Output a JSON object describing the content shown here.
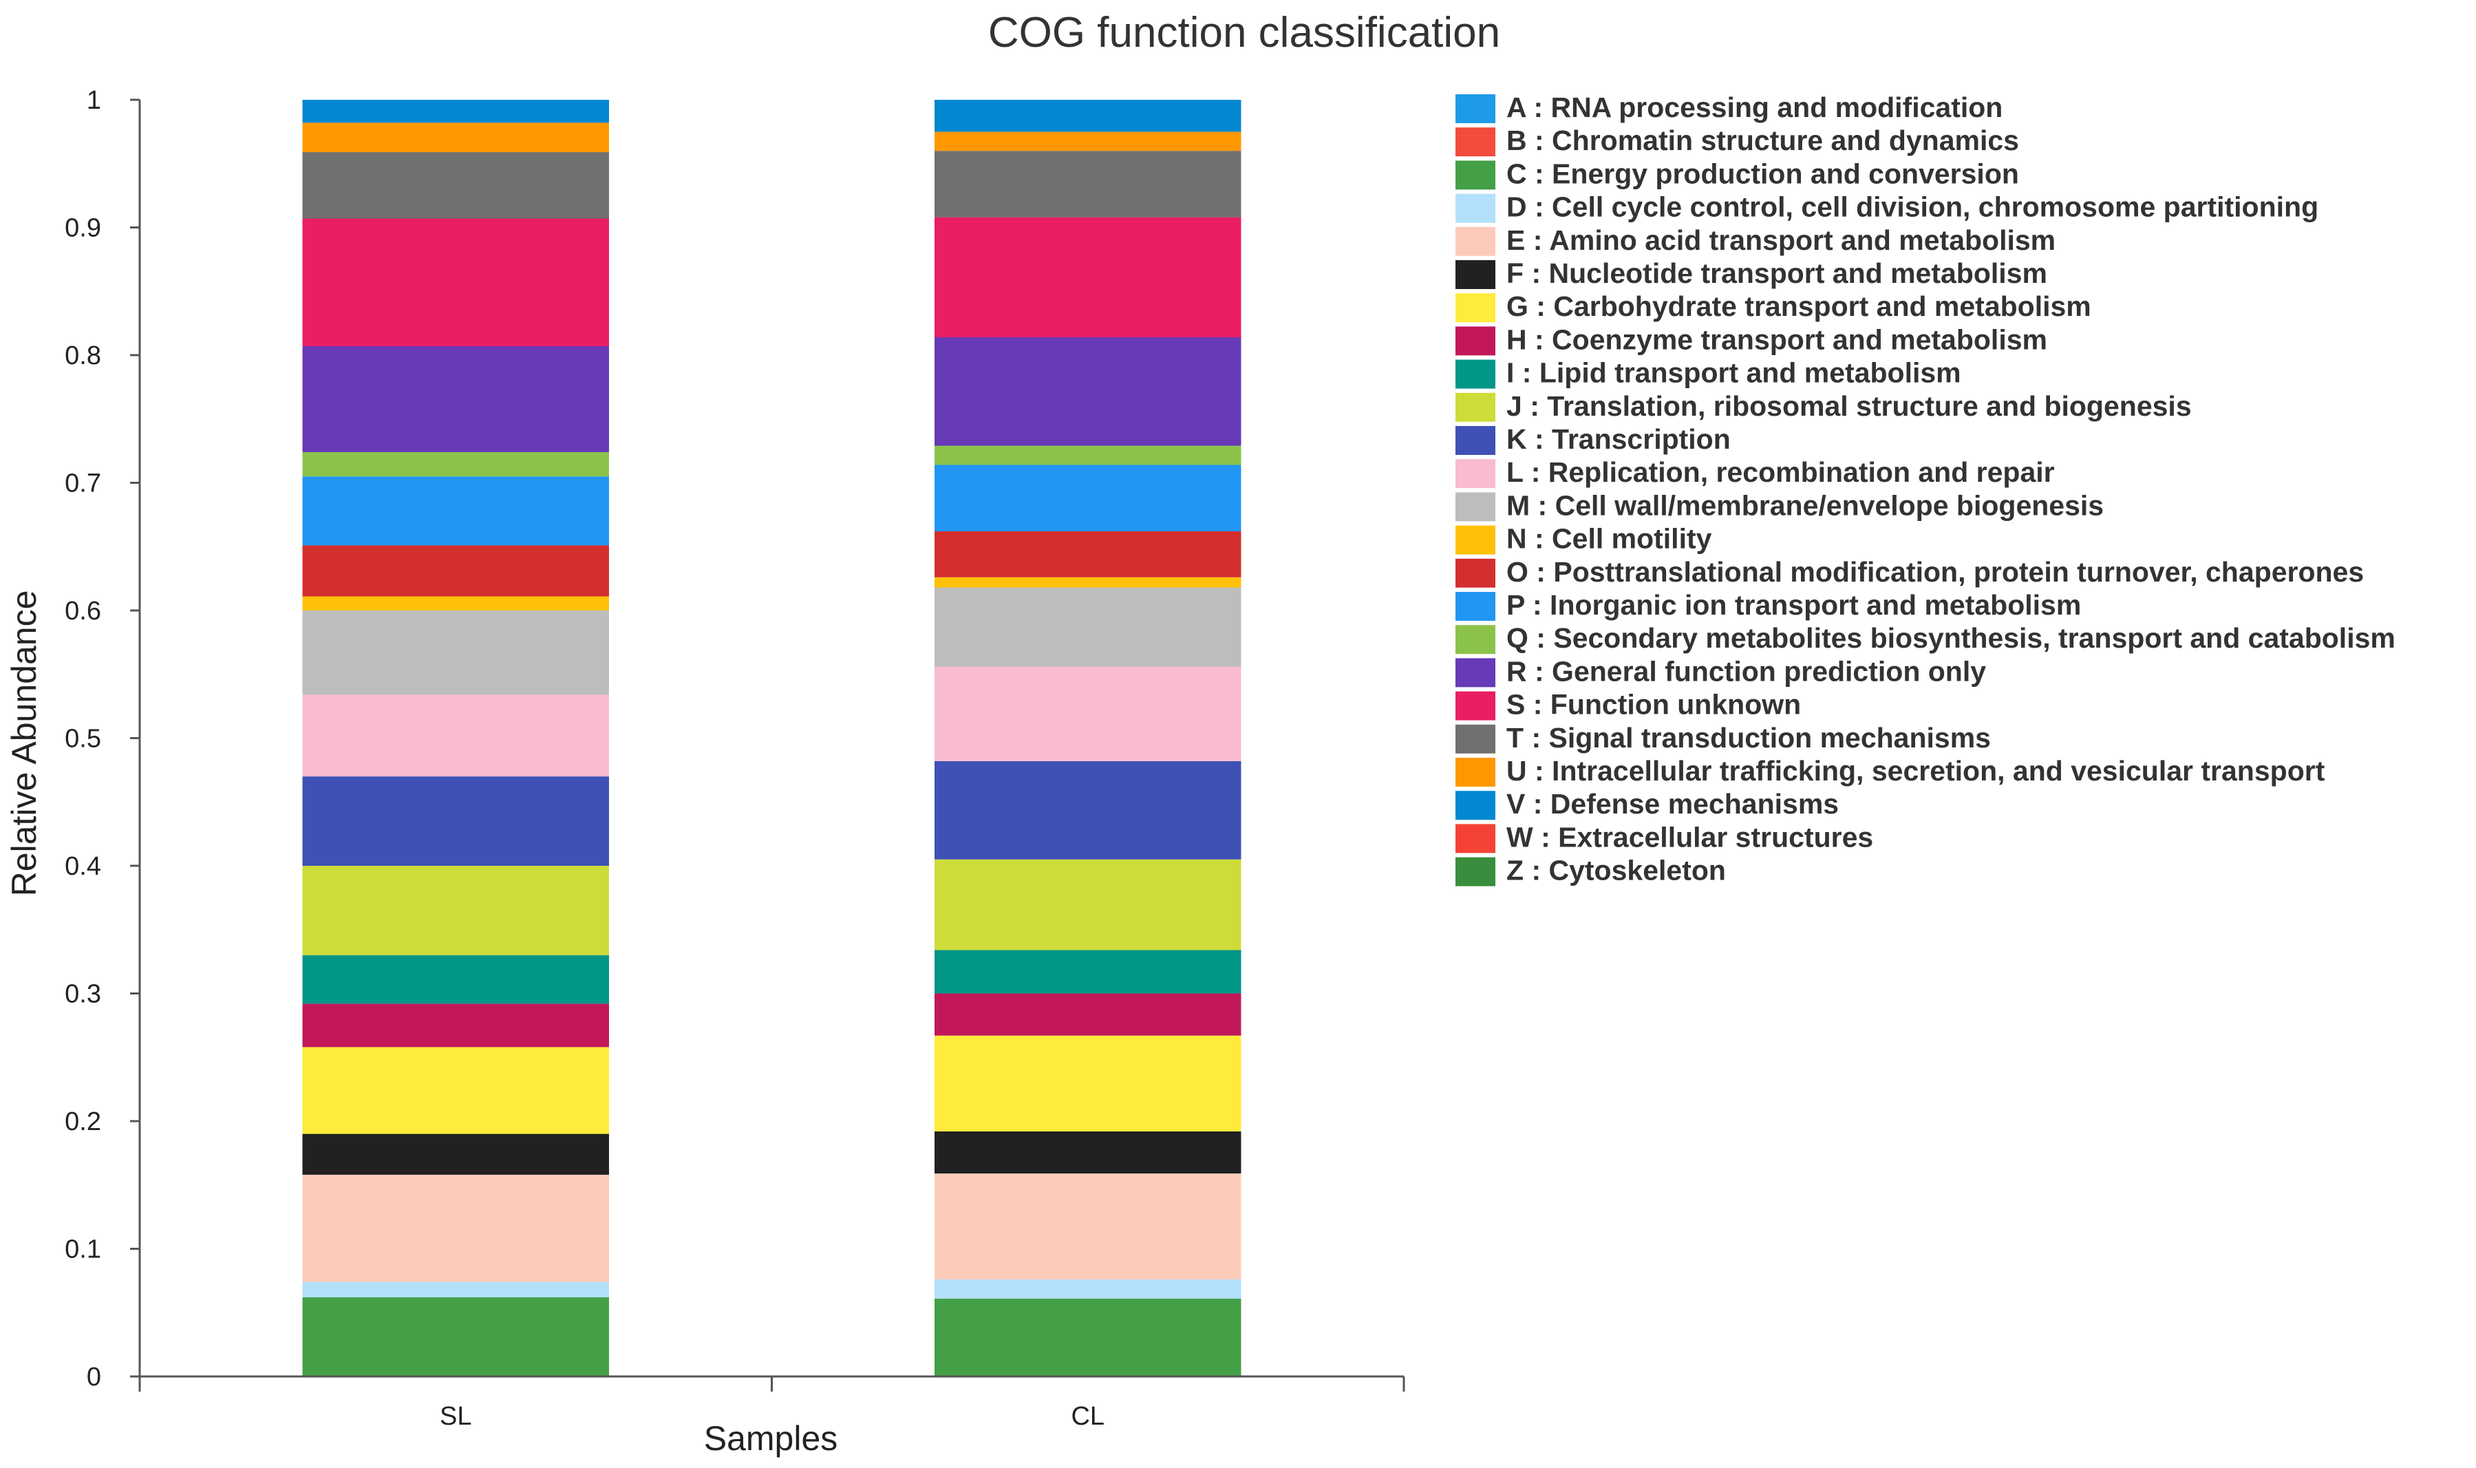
{
  "chart_data": {
    "type": "bar",
    "stacked": true,
    "title": "COG function classification",
    "xlabel": "Samples",
    "ylabel": "Relative Abundance",
    "ylim": [
      0,
      1
    ],
    "yticks": [
      "0",
      "0.1",
      "0.2",
      "0.3",
      "0.4",
      "0.5",
      "0.6",
      "0.7",
      "0.8",
      "0.9",
      "1"
    ],
    "ytick_values": [
      0,
      0.1,
      0.2,
      0.3,
      0.4,
      0.5,
      0.6,
      0.7,
      0.8,
      0.9,
      1
    ],
    "categories": [
      "SL",
      "CL"
    ],
    "legend_position": "right",
    "series": [
      {
        "code": "A",
        "name": "RNA processing and modification",
        "color": "#1e9be6",
        "values": [
          0.0,
          0.0
        ]
      },
      {
        "code": "B",
        "name": "Chromatin structure and dynamics",
        "color": "#f44c3c",
        "values": [
          0.0,
          0.0
        ]
      },
      {
        "code": "C",
        "name": "Energy production and conversion",
        "color": "#43a047",
        "values": [
          0.062,
          0.061
        ]
      },
      {
        "code": "D",
        "name": "Cell cycle control, cell division, chromosome partitioning",
        "color": "#b3e0fb",
        "values": [
          0.012,
          0.015
        ]
      },
      {
        "code": "E",
        "name": "Amino acid transport and metabolism",
        "color": "#fdcbba",
        "values": [
          0.084,
          0.083
        ]
      },
      {
        "code": "F",
        "name": "Nucleotide transport and metabolism",
        "color": "#212121",
        "values": [
          0.032,
          0.033
        ]
      },
      {
        "code": "G",
        "name": "Carbohydrate transport and metabolism",
        "color": "#ffeb3b",
        "values": [
          0.068,
          0.075
        ]
      },
      {
        "code": "H",
        "name": "Coenzyme transport and metabolism",
        "color": "#c2185b",
        "values": [
          0.034,
          0.033
        ]
      },
      {
        "code": "I",
        "name": "Lipid transport and metabolism",
        "color": "#009688",
        "values": [
          0.038,
          0.034
        ]
      },
      {
        "code": "J",
        "name": "Translation, ribosomal structure and biogenesis",
        "color": "#cddc39",
        "values": [
          0.07,
          0.071
        ]
      },
      {
        "code": "K",
        "name": "Transcription",
        "color": "#3f51b5",
        "values": [
          0.07,
          0.077
        ]
      },
      {
        "code": "L",
        "name": "Replication, recombination and repair",
        "color": "#f8bbd0",
        "values": [
          0.064,
          0.074
        ]
      },
      {
        "code": "M",
        "name": "Cell wall/membrane/envelope biogenesis",
        "color": "#bdbdbd",
        "values": [
          0.066,
          0.062
        ]
      },
      {
        "code": "N",
        "name": "Cell motility",
        "color": "#ffc107",
        "values": [
          0.011,
          0.008
        ]
      },
      {
        "code": "O",
        "name": "Posttranslational modification, protein turnover, chaperones",
        "color": "#d32f2f",
        "values": [
          0.04,
          0.036
        ]
      },
      {
        "code": "P",
        "name": "Inorganic ion transport and metabolism",
        "color": "#2196f3",
        "values": [
          0.054,
          0.052
        ]
      },
      {
        "code": "Q",
        "name": "Secondary metabolites biosynthesis, transport and catabolism",
        "color": "#8bc34a",
        "values": [
          0.019,
          0.015
        ]
      },
      {
        "code": "R",
        "name": "General function prediction only",
        "color": "#673ab7",
        "values": [
          0.083,
          0.085
        ]
      },
      {
        "code": "S",
        "name": "Function unknown",
        "color": "#e91e63",
        "values": [
          0.1,
          0.094
        ]
      },
      {
        "code": "T",
        "name": "Signal transduction mechanisms",
        "color": "#707070",
        "values": [
          0.052,
          0.052
        ]
      },
      {
        "code": "U",
        "name": "Intracellular trafficking, secretion, and vesicular transport",
        "color": "#ff9800",
        "values": [
          0.023,
          0.015
        ]
      },
      {
        "code": "V",
        "name": "Defense mechanisms",
        "color": "#0288d1",
        "values": [
          0.018,
          0.025
        ]
      },
      {
        "code": "W",
        "name": "Extracellular structures",
        "color": "#f44336",
        "values": [
          0.0,
          0.0
        ]
      },
      {
        "code": "Z",
        "name": "Cytoskeleton",
        "color": "#388e3c",
        "values": [
          0.0,
          0.0
        ]
      }
    ]
  }
}
